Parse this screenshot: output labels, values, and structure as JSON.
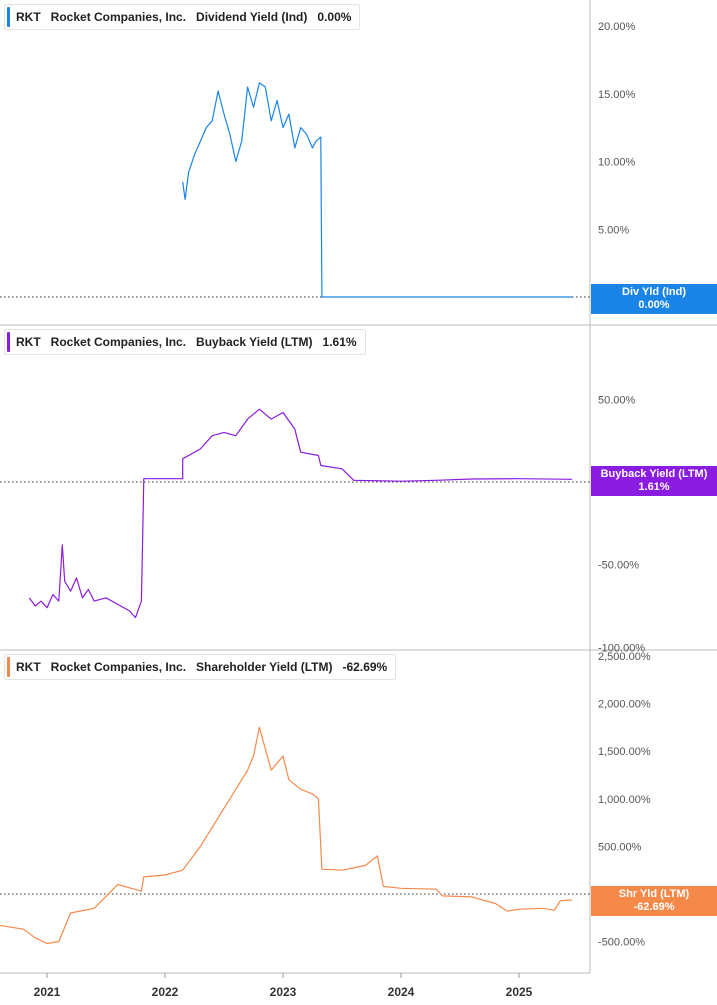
{
  "panels": [
    {
      "ticker": "RKT",
      "company": "Rocket Companies, Inc.",
      "metric": "Dividend Yield (Ind)",
      "value": "0.00%",
      "tag_label": "Div Yld (Ind)",
      "tag_value": "0.00%",
      "color": "#1a85e6"
    },
    {
      "ticker": "RKT",
      "company": "Rocket Companies, Inc.",
      "metric": "Buyback Yield (LTM)",
      "value": "1.61%",
      "tag_label": "Buyback Yield (LTM)",
      "tag_value": "1.61%",
      "color": "#8a1be0"
    },
    {
      "ticker": "RKT",
      "company": "Rocket Companies, Inc.",
      "metric": "Shareholder Yield (LTM)",
      "value": "-62.69%",
      "tag_label": "Shr Yld (LTM)",
      "tag_value": "-62.69%",
      "color": "#f5894a"
    }
  ],
  "chart_data": [
    {
      "type": "line",
      "series": [
        {
          "name": "Dividend Yield (Ind)",
          "values": [
            [
              2022.15,
              8.5
            ],
            [
              2022.17,
              7.2
            ],
            [
              2022.2,
              9.2
            ],
            [
              2022.25,
              10.5
            ],
            [
              2022.3,
              11.5
            ],
            [
              2022.35,
              12.5
            ],
            [
              2022.4,
              13.0
            ],
            [
              2022.45,
              15.2
            ],
            [
              2022.5,
              13.5
            ],
            [
              2022.55,
              12.0
            ],
            [
              2022.6,
              10.0
            ],
            [
              2022.65,
              11.5
            ],
            [
              2022.7,
              15.5
            ],
            [
              2022.75,
              14.0
            ],
            [
              2022.8,
              15.8
            ],
            [
              2022.85,
              15.5
            ],
            [
              2022.9,
              13.0
            ],
            [
              2022.95,
              14.5
            ],
            [
              2023.0,
              12.5
            ],
            [
              2023.05,
              13.5
            ],
            [
              2023.1,
              11.0
            ],
            [
              2023.15,
              12.5
            ],
            [
              2023.2,
              12.0
            ],
            [
              2023.25,
              11.0
            ],
            [
              2023.28,
              11.5
            ],
            [
              2023.32,
              11.8
            ],
            [
              2023.33,
              0.0
            ],
            [
              2025.45,
              0.0
            ]
          ]
        }
      ],
      "y_ticks": [
        "20.00%",
        "15.00%",
        "10.00%",
        "5.00%",
        "0.00%"
      ],
      "ylim": [
        0,
        21.8
      ]
    },
    {
      "type": "line",
      "series": [
        {
          "name": "Buyback Yield (LTM)",
          "values": [
            [
              2020.85,
              -70
            ],
            [
              2020.9,
              -75
            ],
            [
              2020.95,
              -72
            ],
            [
              2021.0,
              -76
            ],
            [
              2021.05,
              -68
            ],
            [
              2021.1,
              -72
            ],
            [
              2021.13,
              -38
            ],
            [
              2021.15,
              -60
            ],
            [
              2021.2,
              -66
            ],
            [
              2021.25,
              -58
            ],
            [
              2021.3,
              -70
            ],
            [
              2021.35,
              -65
            ],
            [
              2021.4,
              -72
            ],
            [
              2021.5,
              -70
            ],
            [
              2021.6,
              -74
            ],
            [
              2021.7,
              -78
            ],
            [
              2021.75,
              -82
            ],
            [
              2021.8,
              -72
            ],
            [
              2021.82,
              2.0
            ],
            [
              2022.15,
              2.0
            ],
            [
              2022.15,
              14.0
            ],
            [
              2022.3,
              20
            ],
            [
              2022.4,
              28
            ],
            [
              2022.5,
              30
            ],
            [
              2022.6,
              28
            ],
            [
              2022.7,
              38
            ],
            [
              2022.8,
              44
            ],
            [
              2022.9,
              38
            ],
            [
              2023.0,
              42
            ],
            [
              2023.1,
              32
            ],
            [
              2023.15,
              18
            ],
            [
              2023.3,
              16
            ],
            [
              2023.32,
              10
            ],
            [
              2023.5,
              8
            ],
            [
              2023.6,
              1.0
            ],
            [
              2024.0,
              0.5
            ],
            [
              2024.3,
              1.0
            ],
            [
              2024.6,
              1.8
            ],
            [
              2025.0,
              2.0
            ],
            [
              2025.45,
              1.61
            ]
          ]
        }
      ],
      "y_ticks": [
        "50.00%",
        "-50.00%",
        "-100.00%"
      ],
      "ylim": [
        -100,
        85
      ]
    },
    {
      "type": "line",
      "series": [
        {
          "name": "Shareholder Yield (LTM)",
          "values": [
            [
              2020.0,
              -250
            ],
            [
              2020.2,
              -300
            ],
            [
              2020.4,
              -320
            ],
            [
              2020.6,
              -330
            ],
            [
              2020.8,
              -370
            ],
            [
              2020.9,
              -460
            ],
            [
              2021.0,
              -520
            ],
            [
              2021.1,
              -500
            ],
            [
              2021.2,
              -200
            ],
            [
              2021.4,
              -150
            ],
            [
              2021.6,
              100
            ],
            [
              2021.8,
              30
            ],
            [
              2021.82,
              180
            ],
            [
              2022.0,
              200
            ],
            [
              2022.15,
              250
            ],
            [
              2022.3,
              500
            ],
            [
              2022.45,
              800
            ],
            [
              2022.6,
              1100
            ],
            [
              2022.7,
              1300
            ],
            [
              2022.75,
              1450
            ],
            [
              2022.8,
              1750
            ],
            [
              2022.9,
              1300
            ],
            [
              2023.0,
              1450
            ],
            [
              2023.05,
              1200
            ],
            [
              2023.15,
              1100
            ],
            [
              2023.25,
              1050
            ],
            [
              2023.3,
              1000
            ],
            [
              2023.33,
              260
            ],
            [
              2023.5,
              250
            ],
            [
              2023.7,
              300
            ],
            [
              2023.8,
              400
            ],
            [
              2023.85,
              80
            ],
            [
              2024.0,
              60
            ],
            [
              2024.3,
              50
            ],
            [
              2024.35,
              -20
            ],
            [
              2024.6,
              -30
            ],
            [
              2024.8,
              -100
            ],
            [
              2024.9,
              -180
            ],
            [
              2025.0,
              -160
            ],
            [
              2025.2,
              -150
            ],
            [
              2025.3,
              -170
            ],
            [
              2025.35,
              -70
            ],
            [
              2025.45,
              -62.69
            ]
          ]
        }
      ],
      "y_ticks": [
        "2,500.00%",
        "2,000.00%",
        "1,500.00%",
        "1,000.00%",
        "500.00%",
        "0.00%",
        "-500.00%"
      ],
      "ylim": [
        -700,
        2500
      ]
    }
  ],
  "x_ticks": [
    "2021",
    "2022",
    "2023",
    "2024",
    "2025"
  ]
}
